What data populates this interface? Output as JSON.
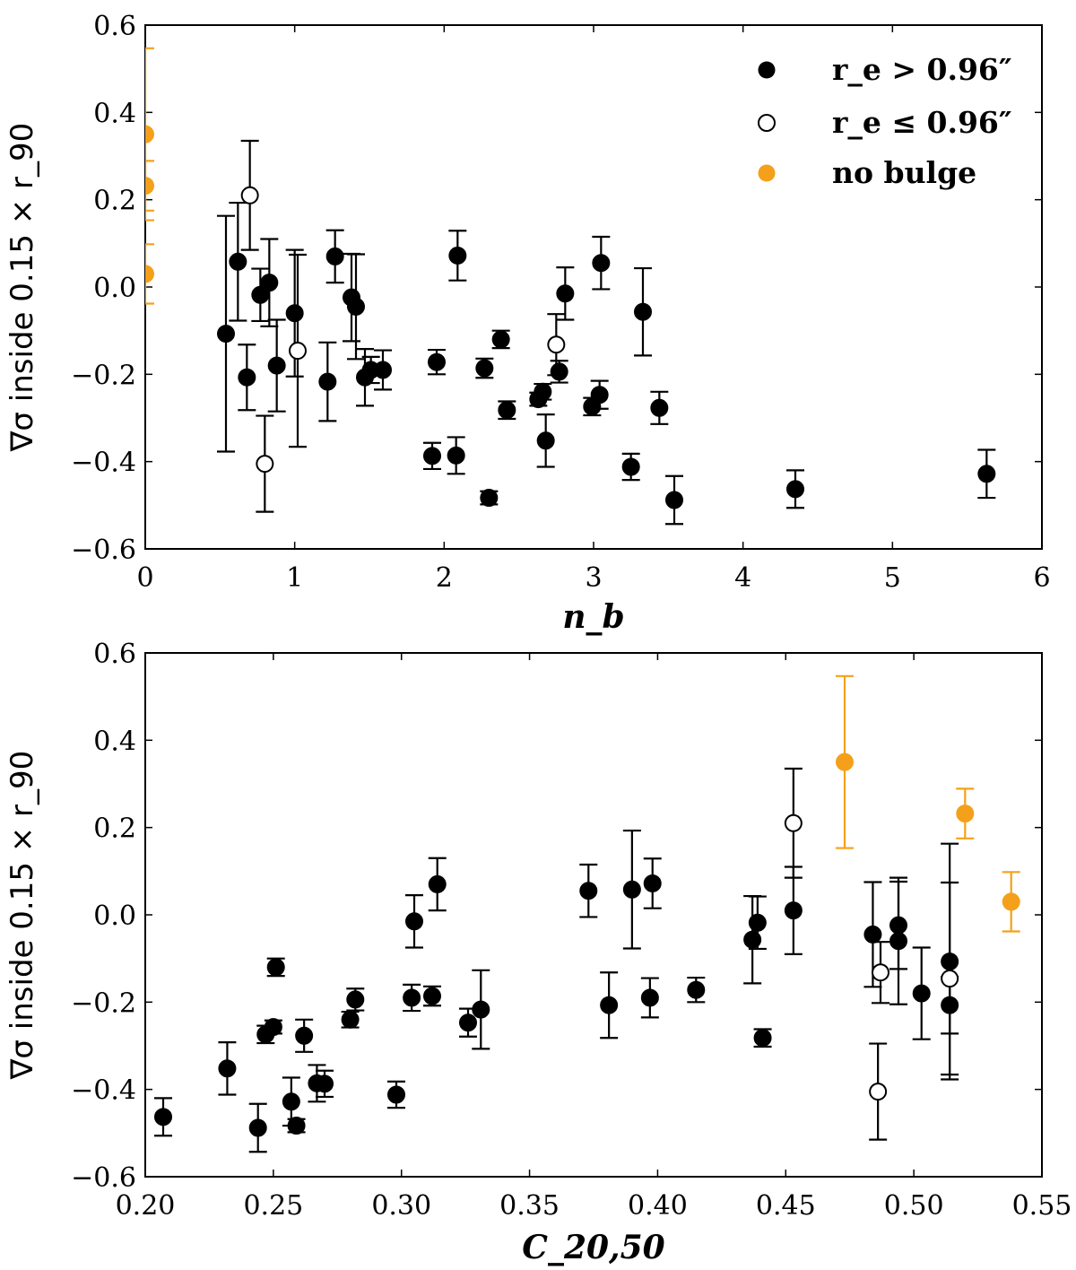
{
  "colors": {
    "filled": "#000000",
    "open_fill": "#ffffff",
    "no_bulge": "#f5a01a"
  },
  "legend": {
    "items": [
      {
        "key": "filled",
        "label": "r_e > 0.96″"
      },
      {
        "key": "open",
        "label": "r_e ≤ 0.96″"
      },
      {
        "key": "nobulge",
        "label": "no bulge"
      }
    ]
  },
  "chart_data": [
    {
      "type": "scatter",
      "title": "",
      "xlabel": "n_b",
      "ylabel": "∇σ inside 0.15 × r_90",
      "xlim": [
        0,
        6
      ],
      "ylim": [
        -0.6,
        0.6
      ],
      "xticks": [
        0,
        1,
        2,
        3,
        4,
        5,
        6
      ],
      "xtick_labels": [
        "0",
        "1",
        "2",
        "3",
        "4",
        "5",
        "6"
      ],
      "yticks": [
        -0.6,
        -0.4,
        -0.2,
        0.0,
        0.2,
        0.4,
        0.6
      ],
      "ytick_labels": [
        "−0.6",
        "−0.4",
        "−0.2",
        "0.0",
        "0.2",
        "0.4",
        "0.6"
      ],
      "series": [
        {
          "name": "r_e > 0.96″",
          "marker": "filled",
          "points": [
            {
              "x": 0.54,
              "y": -0.107,
              "lo": 0.27,
              "hi": 0.27
            },
            {
              "x": 0.62,
              "y": 0.058,
              "lo": 0.135,
              "hi": 0.135
            },
            {
              "x": 0.68,
              "y": -0.207,
              "lo": 0.075,
              "hi": 0.075
            },
            {
              "x": 0.77,
              "y": -0.018,
              "lo": 0.06,
              "hi": 0.06
            },
            {
              "x": 0.83,
              "y": 0.01,
              "lo": 0.1,
              "hi": 0.1
            },
            {
              "x": 0.88,
              "y": -0.18,
              "lo": 0.105,
              "hi": 0.105
            },
            {
              "x": 1.0,
              "y": -0.06,
              "lo": 0.145,
              "hi": 0.145
            },
            {
              "x": 1.22,
              "y": -0.217,
              "lo": 0.09,
              "hi": 0.09
            },
            {
              "x": 1.27,
              "y": 0.07,
              "lo": 0.06,
              "hi": 0.06
            },
            {
              "x": 1.38,
              "y": -0.024,
              "lo": 0.1,
              "hi": 0.1
            },
            {
              "x": 1.41,
              "y": -0.045,
              "lo": 0.12,
              "hi": 0.12
            },
            {
              "x": 1.47,
              "y": -0.207,
              "lo": 0.065,
              "hi": 0.065
            },
            {
              "x": 1.51,
              "y": -0.19,
              "lo": 0.03,
              "hi": 0.03
            },
            {
              "x": 1.59,
              "y": -0.19,
              "lo": 0.045,
              "hi": 0.045
            },
            {
              "x": 1.92,
              "y": -0.387,
              "lo": 0.03,
              "hi": 0.03
            },
            {
              "x": 1.95,
              "y": -0.172,
              "lo": 0.028,
              "hi": 0.028
            },
            {
              "x": 2.08,
              "y": -0.386,
              "lo": 0.042,
              "hi": 0.042
            },
            {
              "x": 2.09,
              "y": 0.072,
              "lo": 0.057,
              "hi": 0.057
            },
            {
              "x": 2.27,
              "y": -0.186,
              "lo": 0.022,
              "hi": 0.022
            },
            {
              "x": 2.3,
              "y": -0.483,
              "lo": 0.015,
              "hi": 0.015
            },
            {
              "x": 2.38,
              "y": -0.12,
              "lo": 0.02,
              "hi": 0.02
            },
            {
              "x": 2.42,
              "y": -0.282,
              "lo": 0.02,
              "hi": 0.02
            },
            {
              "x": 2.63,
              "y": -0.257,
              "lo": 0.015,
              "hi": 0.015
            },
            {
              "x": 2.66,
              "y": -0.24,
              "lo": 0.018,
              "hi": 0.018
            },
            {
              "x": 2.68,
              "y": -0.352,
              "lo": 0.06,
              "hi": 0.06
            },
            {
              "x": 2.77,
              "y": -0.194,
              "lo": 0.025,
              "hi": 0.025
            },
            {
              "x": 2.81,
              "y": -0.015,
              "lo": 0.06,
              "hi": 0.06
            },
            {
              "x": 2.99,
              "y": -0.274,
              "lo": 0.02,
              "hi": 0.02
            },
            {
              "x": 3.04,
              "y": -0.247,
              "lo": 0.032,
              "hi": 0.032
            },
            {
              "x": 3.05,
              "y": 0.055,
              "lo": 0.06,
              "hi": 0.06
            },
            {
              "x": 3.25,
              "y": -0.412,
              "lo": 0.03,
              "hi": 0.03
            },
            {
              "x": 3.33,
              "y": -0.057,
              "lo": 0.1,
              "hi": 0.1
            },
            {
              "x": 3.44,
              "y": -0.277,
              "lo": 0.037,
              "hi": 0.037
            },
            {
              "x": 3.54,
              "y": -0.488,
              "lo": 0.055,
              "hi": 0.055
            },
            {
              "x": 4.35,
              "y": -0.463,
              "lo": 0.043,
              "hi": 0.043
            },
            {
              "x": 5.63,
              "y": -0.428,
              "lo": 0.055,
              "hi": 0.055
            }
          ]
        },
        {
          "name": "r_e ≤ 0.96″",
          "marker": "open",
          "points": [
            {
              "x": 0.7,
              "y": 0.21,
              "lo": 0.125,
              "hi": 0.125
            },
            {
              "x": 0.8,
              "y": -0.405,
              "lo": 0.11,
              "hi": 0.11
            },
            {
              "x": 1.02,
              "y": -0.146,
              "lo": 0.22,
              "hi": 0.22
            },
            {
              "x": 2.75,
              "y": -0.132,
              "lo": 0.07,
              "hi": 0.07
            }
          ]
        },
        {
          "name": "no bulge",
          "marker": "nobulge",
          "points": [
            {
              "x": 0.0,
              "y": 0.35,
              "lo": 0.197,
              "hi": 0.197
            },
            {
              "x": 0.0,
              "y": 0.232,
              "lo": 0.057,
              "hi": 0.057
            },
            {
              "x": 0.0,
              "y": 0.03,
              "lo": 0.068,
              "hi": 0.068
            }
          ]
        }
      ]
    },
    {
      "type": "scatter",
      "title": "",
      "xlabel": "C_20,50",
      "ylabel": "∇σ inside 0.15 × r_90",
      "xlim": [
        0.2,
        0.55
      ],
      "ylim": [
        -0.6,
        0.6
      ],
      "xticks": [
        0.2,
        0.25,
        0.3,
        0.35,
        0.4,
        0.45,
        0.5,
        0.55
      ],
      "xtick_labels": [
        "0.20",
        "0.25",
        "0.30",
        "0.35",
        "0.40",
        "0.45",
        "0.50",
        "0.55"
      ],
      "yticks": [
        -0.6,
        -0.4,
        -0.2,
        0.0,
        0.2,
        0.4,
        0.6
      ],
      "ytick_labels": [
        "−0.6",
        "−0.4",
        "−0.2",
        "0.0",
        "0.2",
        "0.4",
        "0.6"
      ],
      "series": [
        {
          "name": "r_e > 0.96″",
          "marker": "filled",
          "points": [
            {
              "x": 0.207,
              "y": -0.463,
              "lo": 0.043,
              "hi": 0.043
            },
            {
              "x": 0.232,
              "y": -0.352,
              "lo": 0.06,
              "hi": 0.06
            },
            {
              "x": 0.244,
              "y": -0.488,
              "lo": 0.055,
              "hi": 0.055
            },
            {
              "x": 0.247,
              "y": -0.274,
              "lo": 0.02,
              "hi": 0.02
            },
            {
              "x": 0.25,
              "y": -0.257,
              "lo": 0.015,
              "hi": 0.015
            },
            {
              "x": 0.251,
              "y": -0.12,
              "lo": 0.02,
              "hi": 0.02
            },
            {
              "x": 0.257,
              "y": -0.428,
              "lo": 0.055,
              "hi": 0.055
            },
            {
              "x": 0.259,
              "y": -0.483,
              "lo": 0.015,
              "hi": 0.015
            },
            {
              "x": 0.262,
              "y": -0.277,
              "lo": 0.037,
              "hi": 0.037
            },
            {
              "x": 0.267,
              "y": -0.386,
              "lo": 0.042,
              "hi": 0.042
            },
            {
              "x": 0.27,
              "y": -0.387,
              "lo": 0.03,
              "hi": 0.03
            },
            {
              "x": 0.28,
              "y": -0.24,
              "lo": 0.018,
              "hi": 0.018
            },
            {
              "x": 0.282,
              "y": -0.194,
              "lo": 0.025,
              "hi": 0.025
            },
            {
              "x": 0.298,
              "y": -0.412,
              "lo": 0.03,
              "hi": 0.03
            },
            {
              "x": 0.304,
              "y": -0.19,
              "lo": 0.03,
              "hi": 0.03
            },
            {
              "x": 0.305,
              "y": -0.015,
              "lo": 0.06,
              "hi": 0.06
            },
            {
              "x": 0.312,
              "y": -0.186,
              "lo": 0.022,
              "hi": 0.022
            },
            {
              "x": 0.314,
              "y": 0.07,
              "lo": 0.06,
              "hi": 0.06
            },
            {
              "x": 0.326,
              "y": -0.247,
              "lo": 0.032,
              "hi": 0.032
            },
            {
              "x": 0.331,
              "y": -0.217,
              "lo": 0.09,
              "hi": 0.09
            },
            {
              "x": 0.373,
              "y": 0.055,
              "lo": 0.06,
              "hi": 0.06
            },
            {
              "x": 0.381,
              "y": -0.207,
              "lo": 0.075,
              "hi": 0.075
            },
            {
              "x": 0.39,
              "y": 0.058,
              "lo": 0.135,
              "hi": 0.135
            },
            {
              "x": 0.397,
              "y": -0.19,
              "lo": 0.045,
              "hi": 0.045
            },
            {
              "x": 0.398,
              "y": 0.072,
              "lo": 0.057,
              "hi": 0.057
            },
            {
              "x": 0.415,
              "y": -0.172,
              "lo": 0.028,
              "hi": 0.028
            },
            {
              "x": 0.437,
              "y": -0.057,
              "lo": 0.1,
              "hi": 0.1
            },
            {
              "x": 0.439,
              "y": -0.018,
              "lo": 0.06,
              "hi": 0.06
            },
            {
              "x": 0.441,
              "y": -0.282,
              "lo": 0.02,
              "hi": 0.02
            },
            {
              "x": 0.453,
              "y": 0.01,
              "lo": 0.1,
              "hi": 0.1
            },
            {
              "x": 0.484,
              "y": -0.045,
              "lo": 0.12,
              "hi": 0.12
            },
            {
              "x": 0.494,
              "y": -0.024,
              "lo": 0.1,
              "hi": 0.1
            },
            {
              "x": 0.494,
              "y": -0.06,
              "lo": 0.145,
              "hi": 0.145
            },
            {
              "x": 0.503,
              "y": -0.18,
              "lo": 0.105,
              "hi": 0.105
            },
            {
              "x": 0.514,
              "y": -0.107,
              "lo": 0.27,
              "hi": 0.27
            },
            {
              "x": 0.514,
              "y": -0.207,
              "lo": 0.065,
              "hi": 0.065
            }
          ]
        },
        {
          "name": "r_e ≤ 0.96″",
          "marker": "open",
          "points": [
            {
              "x": 0.453,
              "y": 0.21,
              "lo": 0.125,
              "hi": 0.125
            },
            {
              "x": 0.486,
              "y": -0.405,
              "lo": 0.11,
              "hi": 0.11
            },
            {
              "x": 0.487,
              "y": -0.132,
              "lo": 0.07,
              "hi": 0.07
            },
            {
              "x": 0.514,
              "y": -0.146,
              "lo": 0.22,
              "hi": 0.22
            }
          ]
        },
        {
          "name": "no bulge",
          "marker": "nobulge",
          "points": [
            {
              "x": 0.473,
              "y": 0.35,
              "lo": 0.197,
              "hi": 0.197
            },
            {
              "x": 0.52,
              "y": 0.232,
              "lo": 0.057,
              "hi": 0.057
            },
            {
              "x": 0.538,
              "y": 0.03,
              "lo": 0.068,
              "hi": 0.068
            }
          ]
        }
      ]
    }
  ]
}
